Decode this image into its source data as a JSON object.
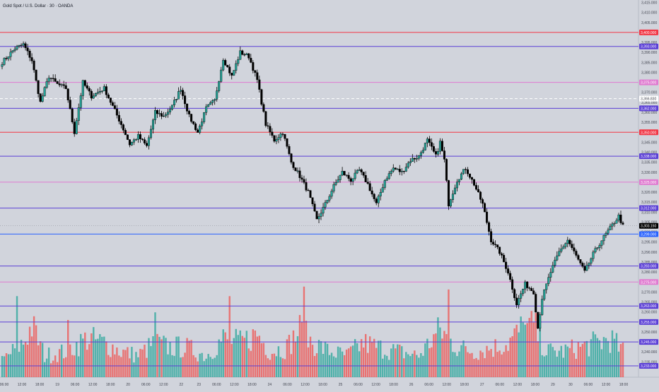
{
  "header": {
    "title": "Gold Spot / U.S. Dollar · 30 · OANDA"
  },
  "colors": {
    "background": "#d1d4dc",
    "bull": "#26a69a",
    "bear": "#000000",
    "wick": "#000000",
    "vol_up": "#26a69a",
    "vol_down": "#ef5350",
    "axis_text": "#434651",
    "red_level": "#f23645",
    "purple_level": "#5b3fd6",
    "pink_level": "#e07ad0",
    "blue_level": "#2962ff",
    "current_price_bg": "#000000"
  },
  "chart_data": {
    "type": "candlestick",
    "symbol": "Gold Spot / U.S. Dollar",
    "interval": "30",
    "source": "OANDA",
    "ylim": [
      3230,
      3415
    ],
    "y_ticks": [
      "3,415.000",
      "3,410.000",
      "3,405.000",
      "3,400.000",
      "3,395.000",
      "3,390.000",
      "3,385.000",
      "3,380.000",
      "3,375.000",
      "3,370.000",
      "3,365.000",
      "3,360.000",
      "3,355.000",
      "3,350.000",
      "3,345.000",
      "3,340.000",
      "3,335.000",
      "3,330.000",
      "3,325.000",
      "3,320.000",
      "3,315.000",
      "3,310.000",
      "3,305.000",
      "3,300.000",
      "3,295.000",
      "3,290.000",
      "3,285.000",
      "3,280.000",
      "3,275.000",
      "3,270.000",
      "3,265.000",
      "3,260.000",
      "3,255.000",
      "3,250.000",
      "3,245.000",
      "3,240.000",
      "3,235.000"
    ],
    "x_ticks": [
      "06:00",
      "12:00",
      "18:00",
      "19",
      "06:00",
      "12:00",
      "18:00",
      "20",
      "06:00",
      "12:00",
      "22",
      "23",
      "06:00",
      "12:00",
      "18:00",
      "24",
      "06:00",
      "12:00",
      "18:00",
      "25",
      "06:00",
      "12:00",
      "18:00",
      "26",
      "06:00",
      "12:00",
      "18:00",
      "27",
      "06:00",
      "12:00",
      "18:00",
      "29",
      "30",
      "06:00",
      "12:00",
      "18:00"
    ],
    "levels": [
      {
        "label": "3,400.000",
        "value": 3400.0,
        "style": "red"
      },
      {
        "label": "3,393.000",
        "value": 3393.0,
        "style": "purple"
      },
      {
        "label": "3,375.000",
        "value": 3375.0,
        "style": "pink"
      },
      {
        "label": "3,362.000",
        "value": 3362.0,
        "style": "purple"
      },
      {
        "label": "3,350.000",
        "value": 3350.0,
        "style": "red"
      },
      {
        "label": "3,338.000",
        "value": 3338.0,
        "style": "purple"
      },
      {
        "label": "3,325.000",
        "value": 3325.0,
        "style": "pink"
      },
      {
        "label": "3,312.000",
        "value": 3312.0,
        "style": "purple"
      },
      {
        "label": "3,299.000",
        "value": 3299.0,
        "style": "blue"
      },
      {
        "label": "3,283.000",
        "value": 3283.0,
        "style": "purple"
      },
      {
        "label": "3,275.000",
        "value": 3275.0,
        "style": "pink"
      },
      {
        "label": "3,263.000",
        "value": 3263.0,
        "style": "purple"
      },
      {
        "label": "3,255.000",
        "value": 3255.0,
        "style": "purple"
      },
      {
        "label": "3,245.000",
        "value": 3245.0,
        "style": "purple"
      },
      {
        "label": "3,233.000",
        "value": 3233.0,
        "style": "purple"
      }
    ],
    "dashed_level": {
      "label": "3,366.830",
      "value": 3366.83
    },
    "current_price": {
      "label": "3,303.150",
      "value": 3303.15
    },
    "anchors": [
      [
        0,
        3385
      ],
      [
        6,
        3392
      ],
      [
        10,
        3394
      ],
      [
        14,
        3386
      ],
      [
        18,
        3365
      ],
      [
        22,
        3378
      ],
      [
        26,
        3374
      ],
      [
        30,
        3372
      ],
      [
        34,
        3350
      ],
      [
        38,
        3375
      ],
      [
        42,
        3368
      ],
      [
        48,
        3372
      ],
      [
        52,
        3363
      ],
      [
        56,
        3354
      ],
      [
        60,
        3344
      ],
      [
        64,
        3348
      ],
      [
        68,
        3343
      ],
      [
        72,
        3360
      ],
      [
        76,
        3358
      ],
      [
        80,
        3363
      ],
      [
        84,
        3372
      ],
      [
        88,
        3358
      ],
      [
        92,
        3350
      ],
      [
        96,
        3362
      ],
      [
        100,
        3366
      ],
      [
        104,
        3387
      ],
      [
        108,
        3378
      ],
      [
        112,
        3390
      ],
      [
        116,
        3388
      ],
      [
        120,
        3376
      ],
      [
        124,
        3354
      ],
      [
        128,
        3346
      ],
      [
        132,
        3350
      ],
      [
        136,
        3335
      ],
      [
        140,
        3328
      ],
      [
        144,
        3320
      ],
      [
        148,
        3306
      ],
      [
        152,
        3314
      ],
      [
        156,
        3323
      ],
      [
        160,
        3330
      ],
      [
        164,
        3326
      ],
      [
        168,
        3331
      ],
      [
        172,
        3324
      ],
      [
        176,
        3314
      ],
      [
        180,
        3326
      ],
      [
        184,
        3332
      ],
      [
        188,
        3330
      ],
      [
        192,
        3336
      ],
      [
        196,
        3338
      ],
      [
        200,
        3346
      ],
      [
        204,
        3338
      ],
      [
        206,
        3345
      ],
      [
        208,
        3336
      ],
      [
        210,
        3314
      ],
      [
        214,
        3326
      ],
      [
        218,
        3332
      ],
      [
        222,
        3324
      ],
      [
        226,
        3314
      ],
      [
        230,
        3296
      ],
      [
        234,
        3290
      ],
      [
        238,
        3280
      ],
      [
        242,
        3264
      ],
      [
        246,
        3274
      ],
      [
        250,
        3270
      ],
      [
        252,
        3252
      ],
      [
        254,
        3267
      ],
      [
        258,
        3280
      ],
      [
        262,
        3290
      ],
      [
        266,
        3296
      ],
      [
        270,
        3288
      ],
      [
        274,
        3280
      ],
      [
        278,
        3289
      ],
      [
        282,
        3296
      ],
      [
        286,
        3302
      ],
      [
        290,
        3308
      ],
      [
        292,
        3303
      ]
    ],
    "volume_profile": [
      [
        0,
        0.2
      ],
      [
        10,
        0.4
      ],
      [
        14,
        0.6
      ],
      [
        20,
        0.25
      ],
      [
        30,
        0.3
      ],
      [
        40,
        0.45
      ],
      [
        48,
        0.4
      ],
      [
        56,
        0.3
      ],
      [
        64,
        0.25
      ],
      [
        72,
        0.4
      ],
      [
        78,
        0.35
      ],
      [
        86,
        0.35
      ],
      [
        96,
        0.25
      ],
      [
        104,
        0.45
      ],
      [
        112,
        0.4
      ],
      [
        120,
        0.5
      ],
      [
        126,
        0.3
      ],
      [
        134,
        0.35
      ],
      [
        140,
        0.55
      ],
      [
        146,
        0.4
      ],
      [
        154,
        0.3
      ],
      [
        162,
        0.25
      ],
      [
        170,
        0.4
      ],
      [
        176,
        0.35
      ],
      [
        186,
        0.3
      ],
      [
        196,
        0.25
      ],
      [
        206,
        0.55
      ],
      [
        214,
        0.35
      ],
      [
        222,
        0.3
      ],
      [
        232,
        0.35
      ],
      [
        238,
        0.4
      ],
      [
        244,
        0.55
      ],
      [
        250,
        0.6
      ],
      [
        256,
        0.3
      ],
      [
        264,
        0.3
      ],
      [
        272,
        0.35
      ],
      [
        280,
        0.4
      ],
      [
        286,
        0.45
      ],
      [
        292,
        0.3
      ]
    ],
    "volume_spikes": [
      [
        7,
        0.85
      ],
      [
        31,
        0.6
      ],
      [
        72,
        0.68
      ],
      [
        107,
        0.85
      ],
      [
        142,
        0.95
      ],
      [
        210,
        0.92
      ],
      [
        246,
        0.55
      ]
    ]
  }
}
